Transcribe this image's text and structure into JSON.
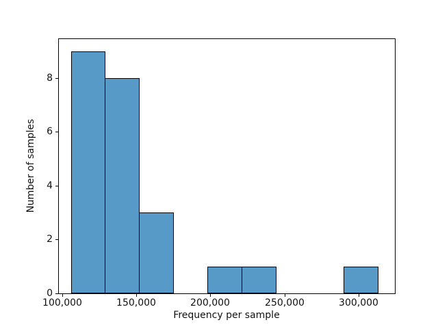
{
  "figure": {
    "background": "#ffffff",
    "title": ""
  },
  "chart_data": {
    "type": "bar",
    "subtype": "histogram",
    "title": "",
    "xlabel": "Frequency per sample",
    "ylabel": "Number of samples",
    "bin_edges": [
      106000,
      129000,
      152000,
      175000,
      198000,
      221000,
      244000,
      267000,
      290000,
      313000
    ],
    "counts": [
      9,
      8,
      3,
      0,
      1,
      1,
      0,
      0,
      1
    ],
    "xlim": [
      97900,
      324450
    ],
    "ylim": [
      0,
      9.45
    ],
    "xticks": {
      "values": [
        100000,
        150000,
        200000,
        250000,
        300000
      ],
      "labels": [
        "100,000",
        "150,000",
        "200,000",
        "250,000",
        "300,000"
      ]
    },
    "yticks": {
      "values": [
        0,
        2,
        4,
        6,
        8
      ],
      "labels": [
        "0",
        "2",
        "4",
        "6",
        "8"
      ]
    },
    "grid": false,
    "legend": null,
    "bar_fill": "#5799c7",
    "bar_edge": "#000000"
  }
}
